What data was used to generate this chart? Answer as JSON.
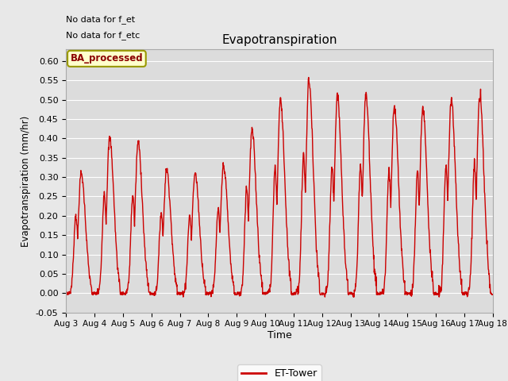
{
  "title": "Evapotranspiration",
  "xlabel": "Time",
  "ylabel": "Evapotranspiration (mm/hr)",
  "ylim": [
    -0.05,
    0.63
  ],
  "yticks": [
    -0.05,
    0.0,
    0.05,
    0.1,
    0.15,
    0.2,
    0.25,
    0.3,
    0.35,
    0.4,
    0.45,
    0.5,
    0.55,
    0.6
  ],
  "line_color": "#cc0000",
  "line_width": 1.0,
  "bg_color": "#e8e8e8",
  "plot_bg_color": "#dcdcdc",
  "legend_label": "ET-Tower",
  "legend_box_color": "#ffffcc",
  "legend_box_edge": "#999900",
  "note_text1": "No data for f_et",
  "note_text2": "No data for f_etc",
  "badge_text": "BA_processed",
  "xtick_labels": [
    "Aug 3",
    "Aug 4",
    "Aug 5",
    "Aug 6",
    "Aug 7",
    "Aug 8",
    "Aug 9",
    "Aug 10",
    "Aug 11",
    "Aug 12",
    "Aug 13",
    "Aug 14",
    "Aug 15",
    "Aug 16",
    "Aug 17",
    "Aug 18"
  ],
  "day_peaks": [
    0.31,
    0.4,
    0.39,
    0.32,
    0.31,
    0.33,
    0.42,
    0.5,
    0.55,
    0.505,
    0.51,
    0.48,
    0.48,
    0.5,
    0.51
  ],
  "num_days": 15
}
